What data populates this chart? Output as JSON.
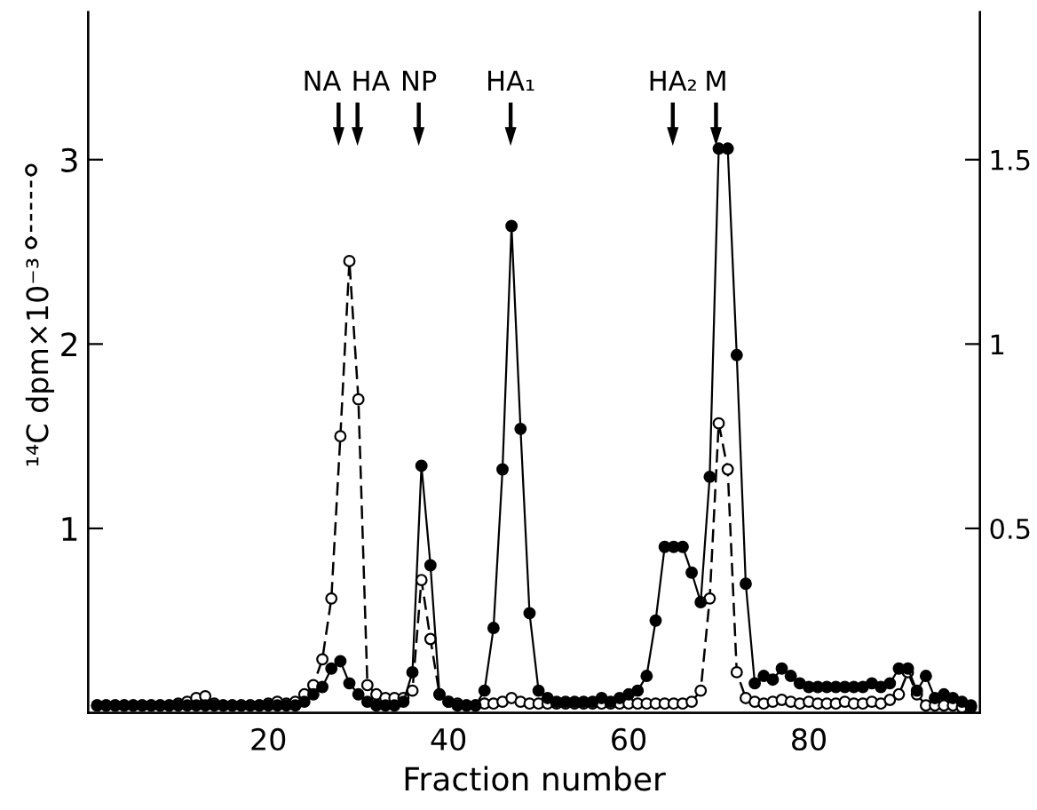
{
  "chart_data": {
    "type": "line",
    "xlabel": "Fraction number",
    "ylabel": "¹⁴C dpm×10⁻³",
    "x": [
      1,
      2,
      3,
      4,
      5,
      6,
      7,
      8,
      9,
      10,
      11,
      12,
      13,
      14,
      15,
      16,
      17,
      18,
      19,
      20,
      21,
      22,
      23,
      24,
      25,
      26,
      27,
      28,
      29,
      30,
      31,
      32,
      33,
      34,
      35,
      36,
      37,
      38,
      39,
      40,
      41,
      42,
      43,
      44,
      45,
      46,
      47,
      48,
      49,
      50,
      51,
      52,
      53,
      54,
      55,
      56,
      57,
      58,
      59,
      60,
      61,
      62,
      63,
      64,
      65,
      66,
      67,
      68,
      69,
      70,
      71,
      72,
      73,
      74,
      75,
      76,
      77,
      78,
      79,
      80,
      81,
      82,
      83,
      84,
      85,
      86,
      87,
      88,
      89,
      90,
      91,
      92,
      93,
      94,
      95,
      96,
      97,
      98
    ],
    "series": [
      {
        "color": "#000000",
        "axis": "y",
        "marker": "circle",
        "line_style": "dashed",
        "values": [
          0.04,
          0.04,
          0.04,
          0.04,
          0.04,
          0.04,
          0.04,
          0.04,
          0.04,
          0.05,
          0.06,
          0.08,
          0.09,
          0.05,
          0.04,
          0.04,
          0.04,
          0.04,
          0.04,
          0.05,
          0.06,
          0.05,
          0.06,
          0.1,
          0.15,
          0.29,
          0.62,
          1.5,
          2.45,
          1.7,
          0.15,
          0.1,
          0.08,
          0.08,
          0.08,
          0.12,
          0.72,
          0.4,
          0.1,
          0.06,
          0.05,
          0.04,
          0.04,
          0.05,
          0.05,
          0.06,
          0.08,
          0.06,
          0.05,
          0.05,
          0.05,
          0.05,
          0.05,
          0.05,
          0.05,
          0.05,
          0.05,
          0.05,
          0.05,
          0.05,
          0.05,
          0.05,
          0.05,
          0.05,
          0.05,
          0.05,
          0.06,
          0.12,
          0.62,
          1.57,
          1.32,
          0.22,
          0.08,
          0.06,
          0.05,
          0.06,
          0.07,
          0.06,
          0.05,
          0.06,
          0.05,
          0.05,
          0.05,
          0.06,
          0.05,
          0.05,
          0.06,
          0.05,
          0.07,
          0.1,
          0.22,
          0.1,
          0.04,
          0.04,
          0.04,
          0.04,
          0.03,
          0.03
        ]
      },
      {
        "color": "#000000",
        "axis": "y2",
        "marker": "circle",
        "line_style": "solid",
        "values": [
          0.02,
          0.02,
          0.02,
          0.02,
          0.02,
          0.02,
          0.02,
          0.02,
          0.02,
          0.02,
          0.02,
          0.02,
          0.02,
          0.02,
          0.02,
          0.02,
          0.02,
          0.02,
          0.02,
          0.02,
          0.02,
          0.02,
          0.02,
          0.03,
          0.05,
          0.07,
          0.12,
          0.14,
          0.08,
          0.05,
          0.03,
          0.02,
          0.02,
          0.02,
          0.03,
          0.11,
          0.67,
          0.4,
          0.05,
          0.03,
          0.02,
          0.02,
          0.02,
          0.06,
          0.23,
          0.66,
          1.32,
          0.77,
          0.27,
          0.06,
          0.04,
          0.03,
          0.03,
          0.03,
          0.03,
          0.03,
          0.04,
          0.03,
          0.04,
          0.05,
          0.06,
          0.1,
          0.25,
          0.45,
          0.45,
          0.45,
          0.38,
          0.3,
          0.64,
          1.53,
          1.53,
          0.97,
          0.35,
          0.08,
          0.1,
          0.09,
          0.12,
          0.1,
          0.08,
          0.07,
          0.07,
          0.07,
          0.07,
          0.07,
          0.07,
          0.07,
          0.08,
          0.07,
          0.08,
          0.12,
          0.12,
          0.06,
          0.1,
          0.04,
          0.05,
          0.04,
          0.03,
          0.02
        ]
      }
    ],
    "xlim": [
      0,
      99
    ],
    "xticks": [
      20,
      40,
      60,
      80
    ],
    "ylim": [
      0,
      3.8
    ],
    "yticks": [
      1,
      2,
      3
    ],
    "y2lim": [
      0,
      1.9
    ],
    "y2ticks": [
      0.5,
      1,
      1.5
    ],
    "grid": false,
    "ref_lines": [
      {
        "axis": "x",
        "value": 27.8,
        "label": "NA"
      },
      {
        "axis": "x",
        "value": 29.9,
        "label": "HA"
      },
      {
        "axis": "x",
        "value": 36.7,
        "label": "NP"
      },
      {
        "axis": "x",
        "value": 46.9,
        "label": "HA₁"
      },
      {
        "axis": "x",
        "value": 64.9,
        "label": "HA₂"
      },
      {
        "axis": "x",
        "value": 69.7,
        "label": "M"
      }
    ]
  }
}
